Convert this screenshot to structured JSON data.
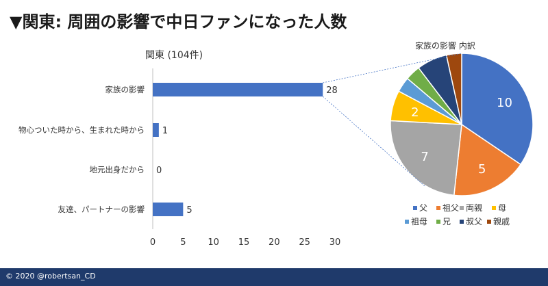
{
  "title": "▼関東: 周囲の影響で中日ファンになった人数",
  "footer": "© 2020 @robertsan_CD",
  "chart_data": [
    {
      "type": "bar",
      "orientation": "horizontal",
      "title": "関東 (104件)",
      "categories": [
        "家族の影響",
        "物心ついた時から、生まれた時から",
        "地元出身だから",
        "友達、パートナーの影響"
      ],
      "values": [
        28,
        1,
        0,
        5
      ],
      "xlim": [
        0,
        30
      ],
      "xticks": [
        0,
        5,
        10,
        15,
        20,
        25,
        30
      ],
      "colors": {
        "bar": "#4472c4"
      },
      "grid": false,
      "data_labels": true
    },
    {
      "type": "pie",
      "title": "家族の影響 内訳",
      "labels": [
        "父",
        "祖父",
        "両親",
        "母",
        "祖母",
        "兄",
        "叔父",
        "親戚"
      ],
      "values": [
        10,
        5,
        7,
        2,
        1,
        1,
        2,
        1
      ],
      "slice_labels": [
        "10",
        "5",
        "7",
        "2",
        "",
        "",
        "",
        ""
      ],
      "colors": [
        "#4472c4",
        "#ed7d31",
        "#a5a5a5",
        "#ffc000",
        "#5b9bd5",
        "#70ad47",
        "#264478",
        "#9e480e"
      ],
      "legend": "bottom"
    }
  ]
}
